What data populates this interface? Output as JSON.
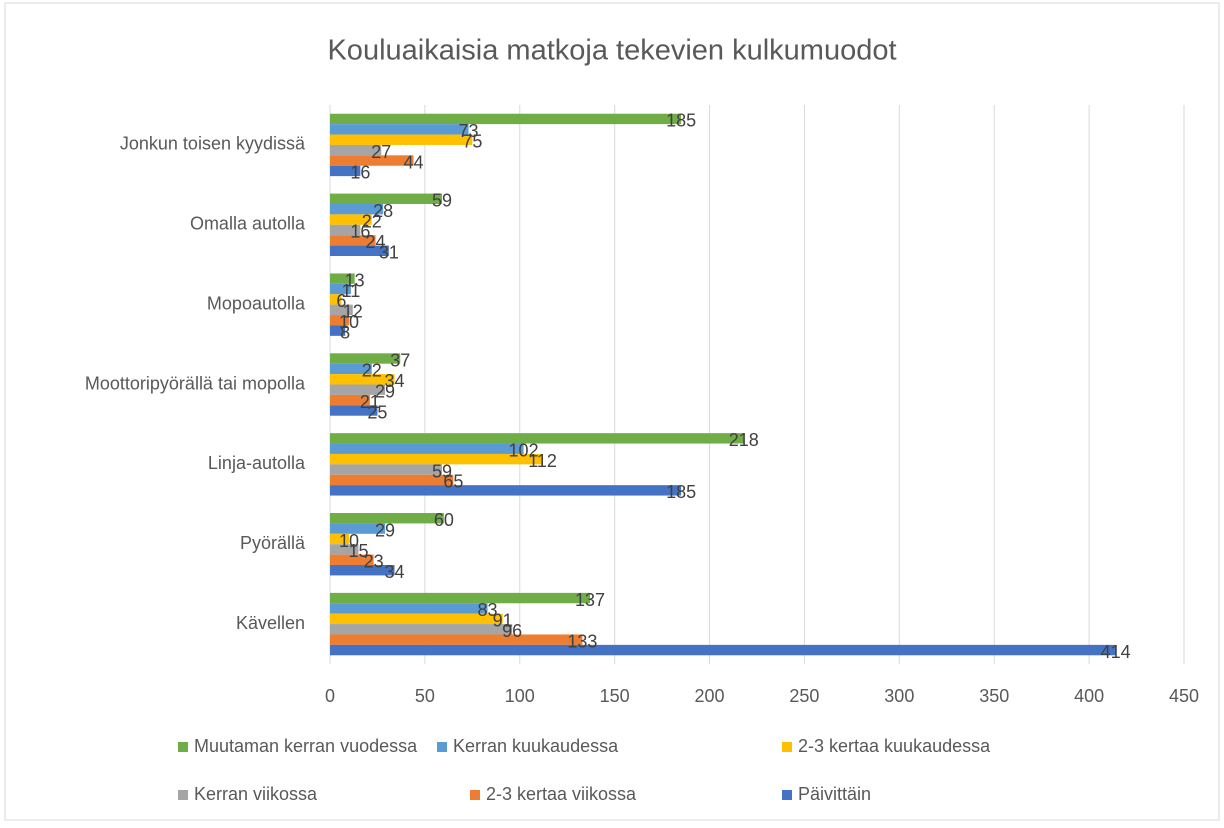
{
  "chart_data": {
    "type": "bar",
    "orientation": "horizontal",
    "title": "Kouluaikaisia matkoja tekevien kulkumuodot",
    "categories": [
      "Jonkun toisen kyydissä",
      "Omalla autolla",
      "Mopoautolla",
      "Moottoripyörällä tai mopolla",
      "Linja-autolla",
      "Pyörällä",
      "Kävellen"
    ],
    "series": [
      {
        "name": "Muutaman kerran vuodessa",
        "color": "#70ad47",
        "values": [
          185,
          59,
          13,
          37,
          218,
          60,
          137
        ]
      },
      {
        "name": "Kerran kuukaudessa",
        "color": "#5b9bd5",
        "values": [
          73,
          28,
          11,
          22,
          102,
          29,
          83
        ]
      },
      {
        "name": "2-3 kertaa kuukaudessa",
        "color": "#ffc000",
        "values": [
          75,
          22,
          6,
          34,
          112,
          10,
          91
        ]
      },
      {
        "name": "Kerran viikossa",
        "color": "#a5a5a5",
        "values": [
          27,
          16,
          12,
          29,
          59,
          15,
          96
        ]
      },
      {
        "name": "2-3 kertaa viikossa",
        "color": "#ed7d31",
        "values": [
          44,
          24,
          10,
          21,
          65,
          23,
          133
        ]
      },
      {
        "name": "Päivittäin",
        "color": "#4472c4",
        "values": [
          16,
          31,
          8,
          25,
          185,
          34,
          414
        ]
      }
    ],
    "xlim": [
      0,
      450
    ],
    "xticks": [
      0,
      50,
      100,
      150,
      200,
      250,
      300,
      350,
      400,
      450
    ],
    "grid": true,
    "legend": "bottom"
  }
}
